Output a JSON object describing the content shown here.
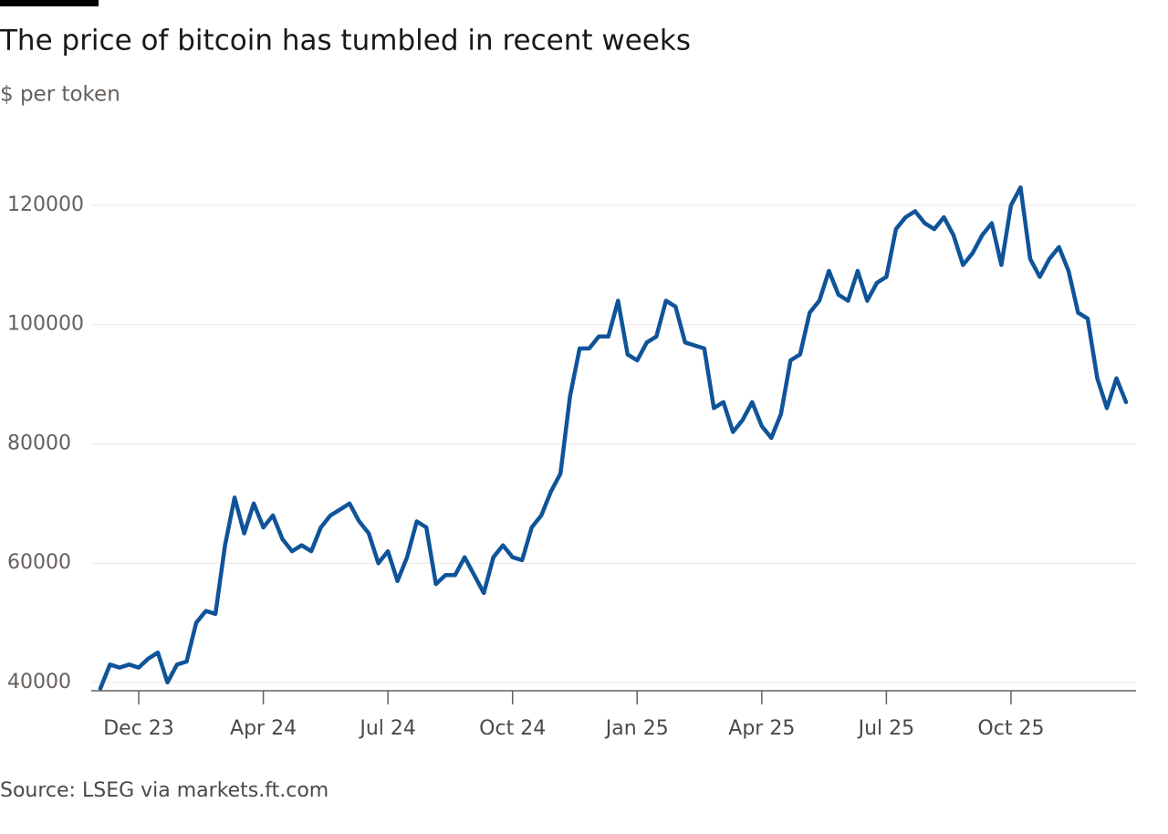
{
  "chart_data": {
    "type": "line",
    "title": "The price of bitcoin has tumbled in recent weeks",
    "subtitle": "$ per token",
    "source": "Source: LSEG via markets.ft.com",
    "categories": [
      null,
      null,
      null,
      null,
      "Dec 23",
      null,
      null,
      null,
      null,
      null,
      null,
      null,
      null,
      null,
      null,
      null,
      null,
      "Apr 24",
      null,
      null,
      null,
      null,
      null,
      null,
      null,
      null,
      null,
      null,
      null,
      null,
      "Jul 24",
      null,
      null,
      null,
      null,
      null,
      null,
      null,
      null,
      null,
      null,
      null,
      null,
      "Oct 24",
      null,
      null,
      null,
      null,
      null,
      null,
      null,
      null,
      null,
      null,
      null,
      null,
      "Jan 25",
      null,
      null,
      null,
      null,
      null,
      null,
      null,
      null,
      null,
      null,
      null,
      null,
      "Apr 25",
      null,
      null,
      null,
      null,
      null,
      null,
      null,
      null,
      null,
      null,
      null,
      null,
      "Jul 25",
      null,
      null,
      null,
      null,
      null,
      null,
      null,
      null,
      null,
      null,
      null,
      null,
      "Oct 25",
      null,
      null,
      null,
      null,
      null,
      null,
      null,
      null,
      null,
      null,
      null,
      null
    ],
    "values": [
      39000,
      43000,
      42500,
      43000,
      42500,
      44000,
      45000,
      40000,
      43000,
      43500,
      50000,
      52000,
      51500,
      63000,
      71000,
      65000,
      70000,
      66000,
      68000,
      64000,
      62000,
      63000,
      62000,
      66000,
      68000,
      69000,
      70000,
      67000,
      65000,
      60000,
      62000,
      57000,
      61000,
      67000,
      66000,
      56500,
      58000,
      58000,
      61000,
      58000,
      55000,
      61000,
      63000,
      61000,
      60500,
      66000,
      68000,
      72000,
      75000,
      88000,
      96000,
      96000,
      98000,
      98000,
      104000,
      95000,
      94000,
      97000,
      98000,
      104000,
      103000,
      97000,
      96500,
      96000,
      86000,
      87000,
      82000,
      84000,
      87000,
      83000,
      81000,
      85000,
      94000,
      95000,
      102000,
      104000,
      109000,
      105000,
      104000,
      109000,
      104000,
      107000,
      108000,
      116000,
      118000,
      119000,
      117000,
      116000,
      118000,
      115000,
      110000,
      112000,
      115000,
      117000,
      110000,
      120000,
      123000,
      111000,
      108000,
      111000,
      113000,
      109000,
      102000,
      101000,
      91000,
      86000,
      91000,
      87000
    ],
    "color": "#0f5499",
    "ylim": [
      38000,
      128000
    ],
    "yticks": [
      40000,
      60000,
      80000,
      100000,
      120000
    ],
    "grid": true
  }
}
